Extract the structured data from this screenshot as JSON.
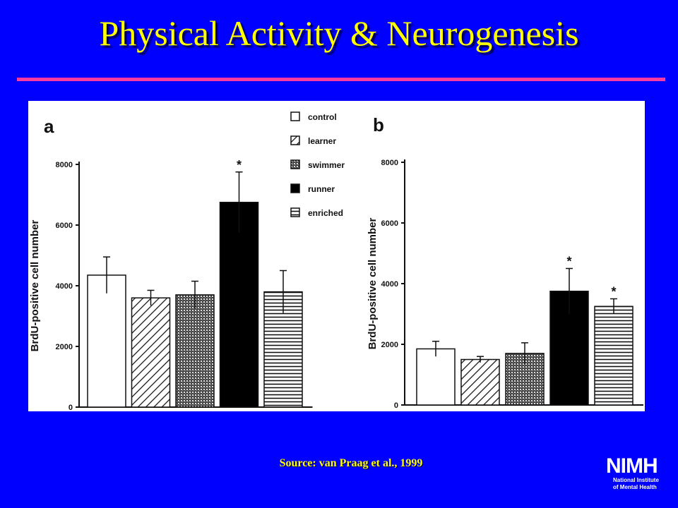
{
  "title": "Physical Activity & Neurogenesis",
  "source": "Source: van Praag et al., 1999",
  "logo": {
    "mark": "NIMH",
    "line1": "National Institute",
    "line2": "of Mental Health"
  },
  "colors": {
    "background": "#0000ff",
    "title": "#ffff00",
    "rule": "#ff3aa0"
  },
  "chart_data": [
    {
      "type": "bar",
      "panel_label": "a",
      "ylabel": "BrdU-positive cell number",
      "ylim": [
        0,
        8000
      ],
      "yticks": [
        "0",
        "2000",
        "4000",
        "6000",
        "8000"
      ],
      "categories": [
        "control",
        "learner",
        "swimmer",
        "runner",
        "enriched"
      ],
      "values": [
        4350,
        3600,
        3700,
        6750,
        3800
      ],
      "errors": [
        600,
        250,
        450,
        1000,
        700
      ],
      "significant": [
        false,
        false,
        false,
        true,
        false
      ],
      "significance_mark": "*"
    },
    {
      "type": "bar",
      "panel_label": "b",
      "ylabel": "BrdU-positive cell number",
      "ylim": [
        0,
        8000
      ],
      "yticks": [
        "0",
        "2000",
        "4000",
        "6000",
        "8000"
      ],
      "categories": [
        "control",
        "learner",
        "swimmer",
        "runner",
        "enriched"
      ],
      "values": [
        1850,
        1500,
        1700,
        3750,
        3250
      ],
      "errors": [
        250,
        100,
        350,
        750,
        250
      ],
      "significant": [
        false,
        false,
        false,
        true,
        true
      ],
      "significance_mark": "*"
    }
  ],
  "legend": {
    "entries": [
      {
        "label": "control",
        "pattern": "white"
      },
      {
        "label": "learner",
        "pattern": "hatch"
      },
      {
        "label": "swimmer",
        "pattern": "dots"
      },
      {
        "label": "runner",
        "pattern": "black"
      },
      {
        "label": "enriched",
        "pattern": "hlines"
      }
    ]
  }
}
